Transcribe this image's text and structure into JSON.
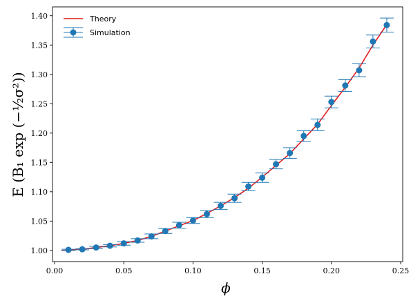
{
  "chart_data": {
    "type": "scatter",
    "title": "",
    "xlabel": "ϕ",
    "ylabel": "E (B₁ exp (−½σ²))",
    "xlim": [
      -0.0015,
      0.2515
    ],
    "ylim": [
      0.981,
      1.415
    ],
    "xticks": [
      0.0,
      0.05,
      0.1,
      0.15,
      0.2,
      0.25
    ],
    "xtick_labels": [
      "0.00",
      "0.05",
      "0.10",
      "0.15",
      "0.20",
      "0.25"
    ],
    "yticks": [
      1.0,
      1.05,
      1.1,
      1.15,
      1.2,
      1.25,
      1.3,
      1.35,
      1.4
    ],
    "ytick_labels": [
      "1.00",
      "1.05",
      "1.10",
      "1.15",
      "1.20",
      "1.25",
      "1.30",
      "1.35",
      "1.40"
    ],
    "grid": false,
    "legend_position": "top-left",
    "series": [
      {
        "name": "Theory",
        "kind": "line",
        "color": "#e41a1c",
        "x": [
          0.005,
          0.01,
          0.02,
          0.03,
          0.04,
          0.05,
          0.06,
          0.07,
          0.08,
          0.09,
          0.1,
          0.11,
          0.12,
          0.13,
          0.14,
          0.15,
          0.16,
          0.17,
          0.18,
          0.19,
          0.2,
          0.21,
          0.22,
          0.23,
          0.24
        ],
        "y": [
          1.0,
          1.0005,
          1.002,
          1.005,
          1.008,
          1.012,
          1.017,
          1.024,
          1.033,
          1.042,
          1.051,
          1.063,
          1.076,
          1.09,
          1.106,
          1.125,
          1.145,
          1.165,
          1.19,
          1.215,
          1.247,
          1.278,
          1.311,
          1.35,
          1.385
        ]
      },
      {
        "name": "Simulation",
        "kind": "errorbar",
        "color": "#1f77b4",
        "x": [
          0.01,
          0.02,
          0.03,
          0.04,
          0.05,
          0.06,
          0.07,
          0.08,
          0.09,
          0.1,
          0.11,
          0.12,
          0.13,
          0.14,
          0.15,
          0.16,
          0.17,
          0.18,
          0.19,
          0.2,
          0.21,
          0.22,
          0.23,
          0.24
        ],
        "y": [
          1.001,
          1.002,
          1.005,
          1.008,
          1.012,
          1.017,
          1.024,
          1.033,
          1.043,
          1.051,
          1.062,
          1.076,
          1.089,
          1.109,
          1.124,
          1.147,
          1.166,
          1.195,
          1.214,
          1.253,
          1.281,
          1.307,
          1.356,
          1.384
        ],
        "err": [
          0.001,
          0.001,
          0.002,
          0.002,
          0.003,
          0.003,
          0.004,
          0.004,
          0.005,
          0.005,
          0.006,
          0.006,
          0.007,
          0.007,
          0.008,
          0.008,
          0.009,
          0.009,
          0.01,
          0.01,
          0.01,
          0.011,
          0.011,
          0.012
        ]
      }
    ]
  }
}
